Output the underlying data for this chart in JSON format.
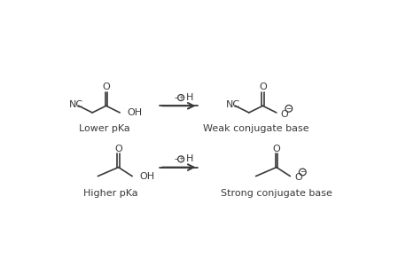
{
  "background_color": "#ffffff",
  "figsize": [
    4.49,
    3.01
  ],
  "dpi": 100,
  "top_left_label": "Lower pKa",
  "top_right_label": "Weak conjugate base",
  "bottom_left_label": "Higher pKa",
  "bottom_right_label": "Strong conjugate base",
  "line_color": "#3a3a3a",
  "text_color": "#3a3a3a",
  "font_size": 8.0
}
